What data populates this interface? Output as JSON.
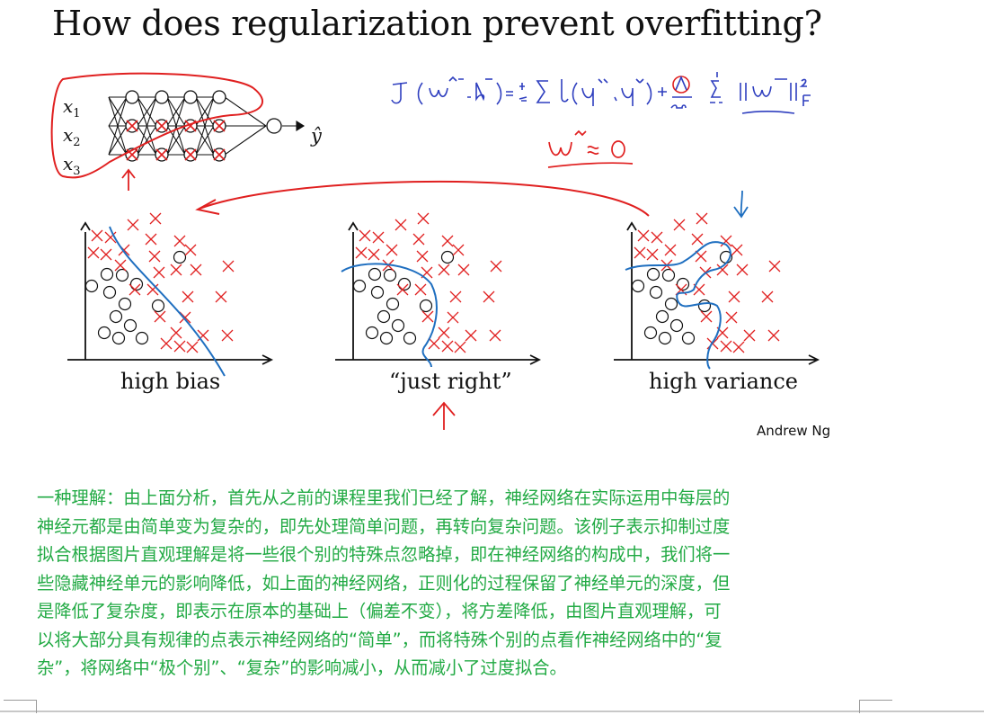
{
  "slide": {
    "title": "How does regularization prevent overfitting?",
    "network_inputs": [
      "x1",
      "x2",
      "x3"
    ],
    "network_output": "ŷ",
    "cost_formula": "J(w[1],b[1]) = 1/m Σ ℓ(ŷ(i), y(i)) + λ/2m Σ ||w[l]||²F",
    "weight_note": "w[l] ≈ 0",
    "panels": [
      {
        "caption": "high bias"
      },
      {
        "caption": "“just right”"
      },
      {
        "caption": "high variance"
      }
    ],
    "author": "Andrew Ng",
    "colors": {
      "ink": "#111111",
      "cross": "#e02020",
      "boundary": "#1f6fc0",
      "note_text": "#22aa44"
    }
  },
  "note": {
    "lines": [
      "一种理解：由上面分析，首先从之前的课程里我们已经了解，神经网络在实际运用中每层的",
      "神经元都是由简单变为复杂的，即先处理简单问题，再转向复杂问题。该例子表示抑制过度",
      "拟合根据图片直观理解是将一些很个别的特殊点忽略掉，即在神经网络的构成中，我们将一",
      "些隐藏神经单元的影响降低，如上面的神经网络，正则化的过程保留了神经单元的深度，但",
      "是降低了复杂度，即表示在原本的基础上（偏差不变），将方差降低，由图片直观理解，可",
      "以将大部分具有规律的点表示神经网络的“简单”，而将特殊个别的点看作神经网络中的“复",
      "杂”，将网络中“极个别”、“复杂”的影响减小，从而减小了过度拟合。"
    ]
  }
}
